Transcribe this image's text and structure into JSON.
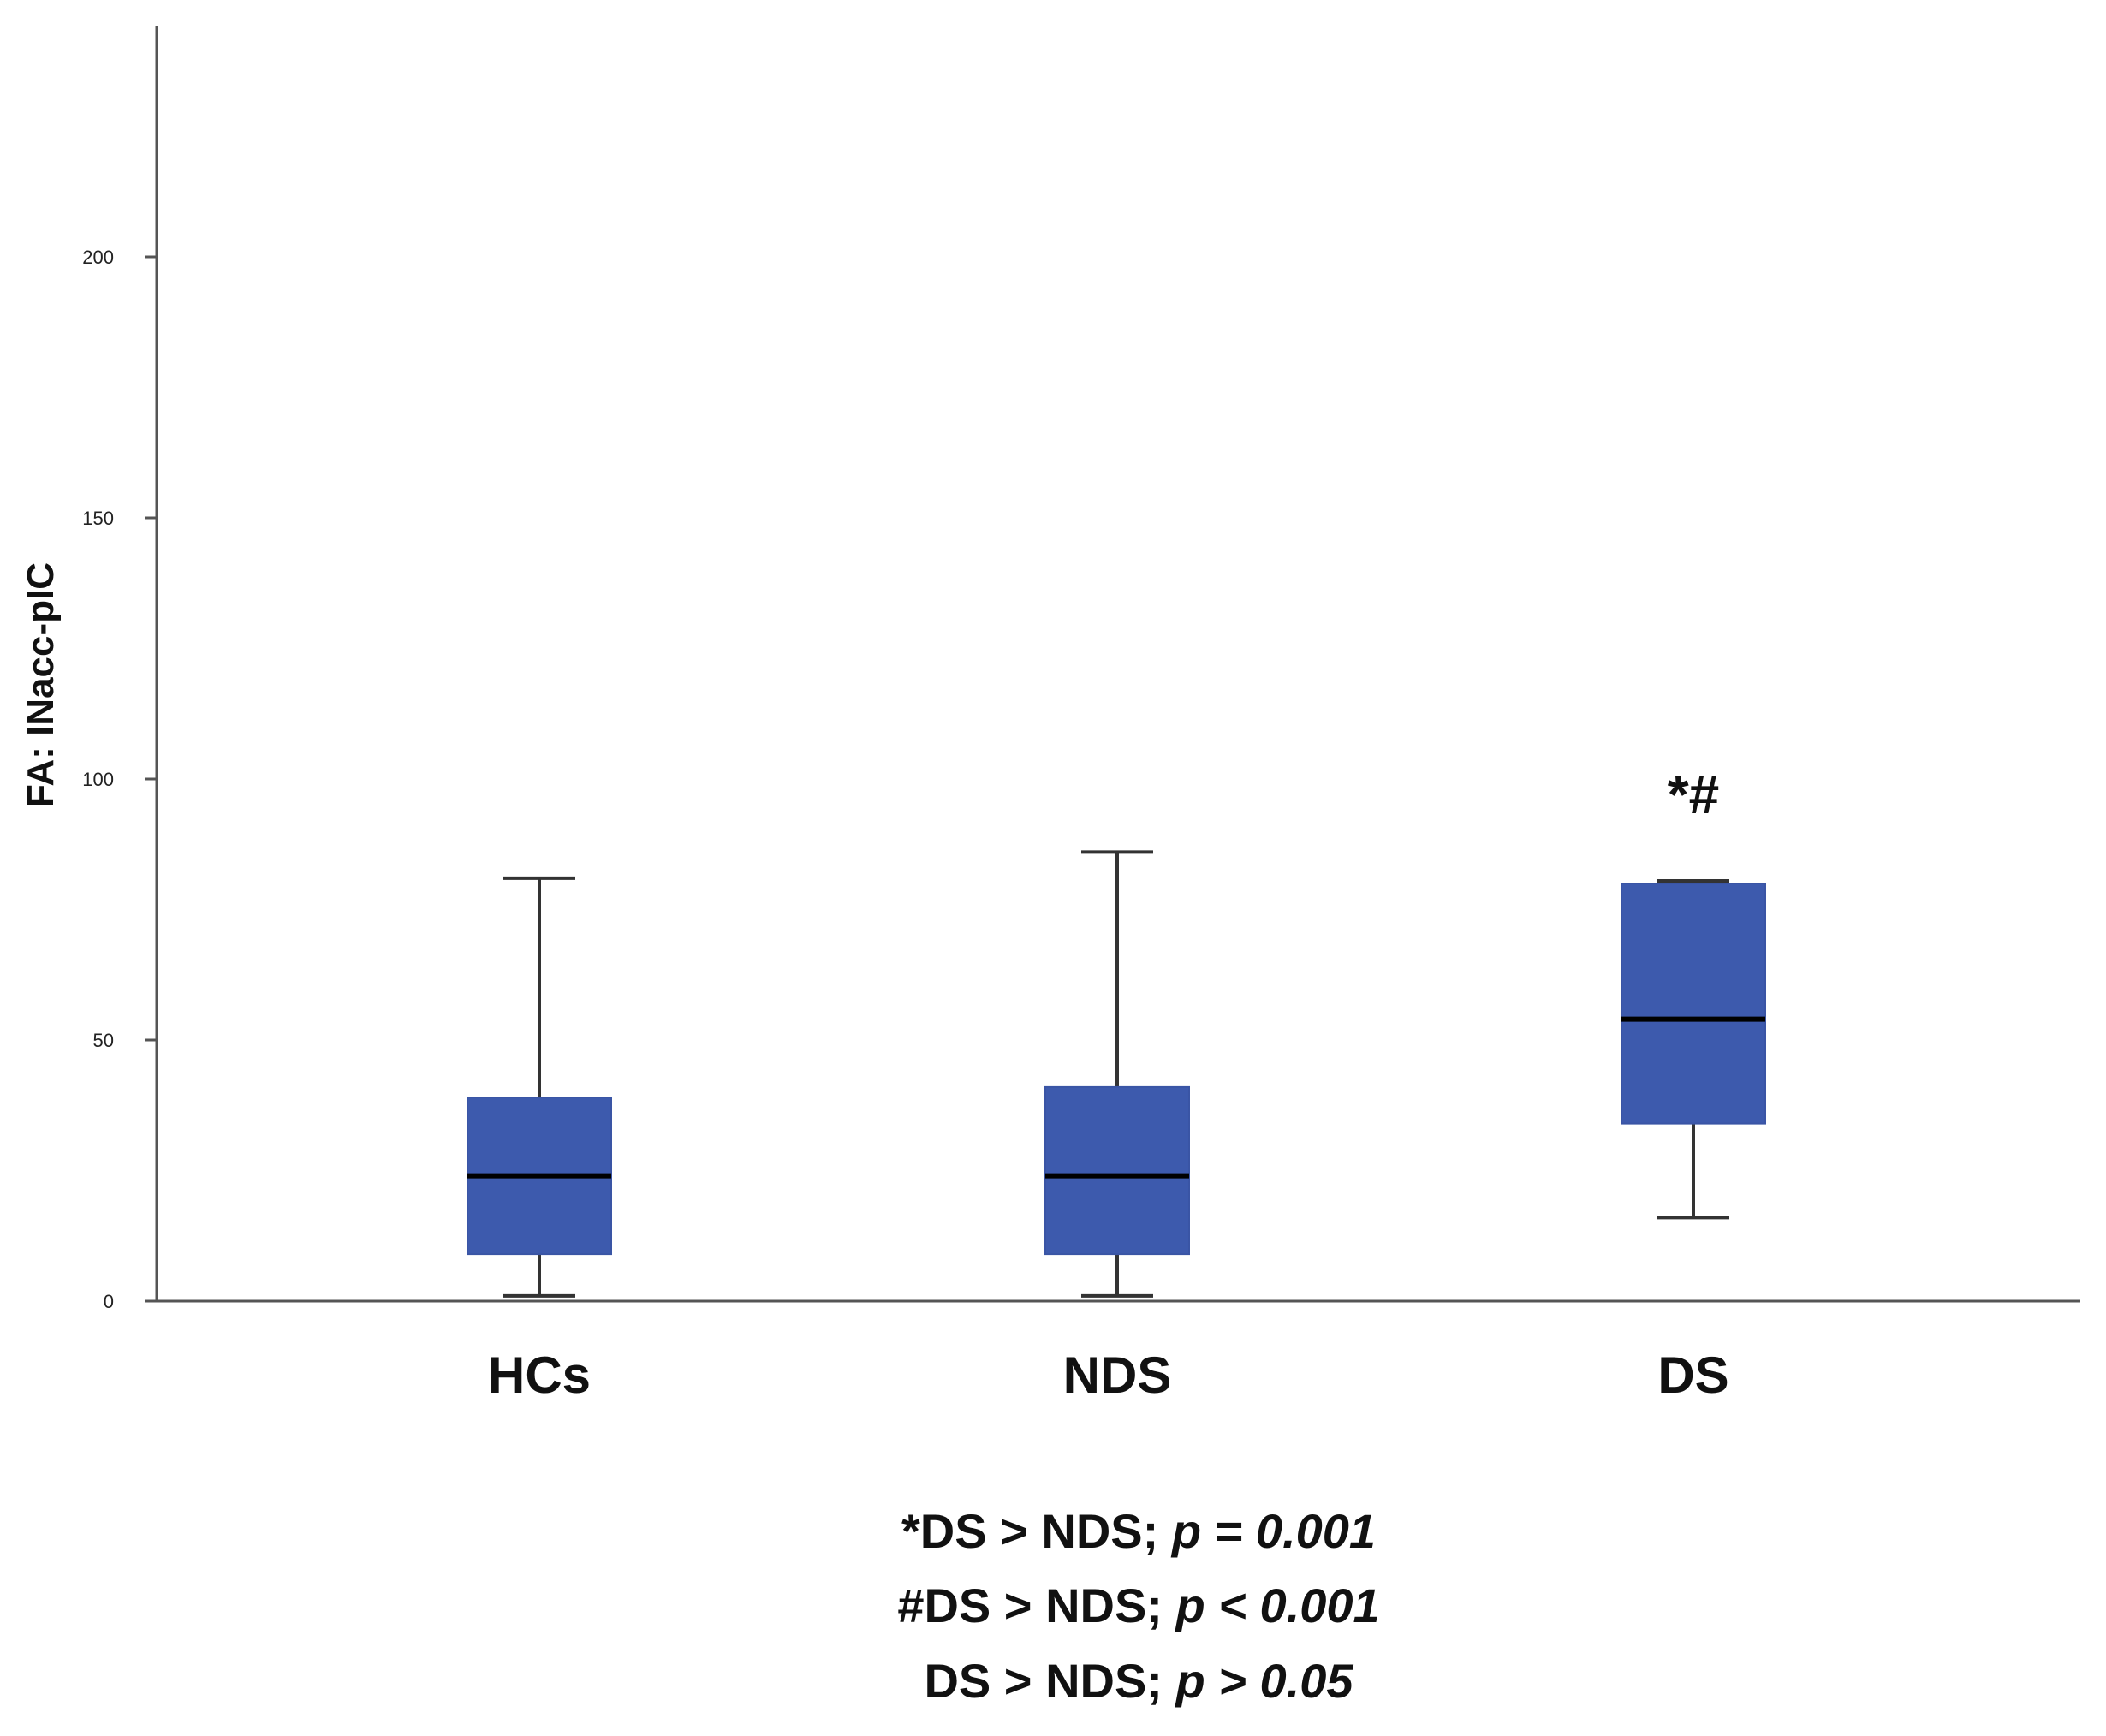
{
  "chart_data": {
    "type": "box",
    "title": "",
    "xlabel": "",
    "ylabel": "FA: INacc-pIC",
    "ylim": [
      0,
      240
    ],
    "yticks": [
      0,
      50,
      100,
      150,
      200
    ],
    "grid": false,
    "color": "#3d5aad",
    "median_color": "#000000",
    "categories": [
      "HCs",
      "NDS",
      "DS"
    ],
    "boxes": [
      {
        "name": "HCs",
        "min": 1,
        "q1": 9,
        "median": 24,
        "q3": 39,
        "max": 81
      },
      {
        "name": "NDS",
        "min": 1,
        "q1": 9,
        "median": 24,
        "q3": 41,
        "max": 86
      },
      {
        "name": "DS",
        "min": 16,
        "q1": 34,
        "median": 54,
        "q3": 80,
        "max": 80.5
      }
    ],
    "significance_marker": {
      "category": "DS",
      "text": "*#"
    },
    "footnotes": [
      {
        "prefix": "*DS > NDS; ",
        "stat": "p = 0.001"
      },
      {
        "prefix": "#DS > NDS; ",
        "stat": "p < 0.001"
      },
      {
        "prefix": "DS > NDS; ",
        "stat": "p > 0.05"
      }
    ]
  }
}
